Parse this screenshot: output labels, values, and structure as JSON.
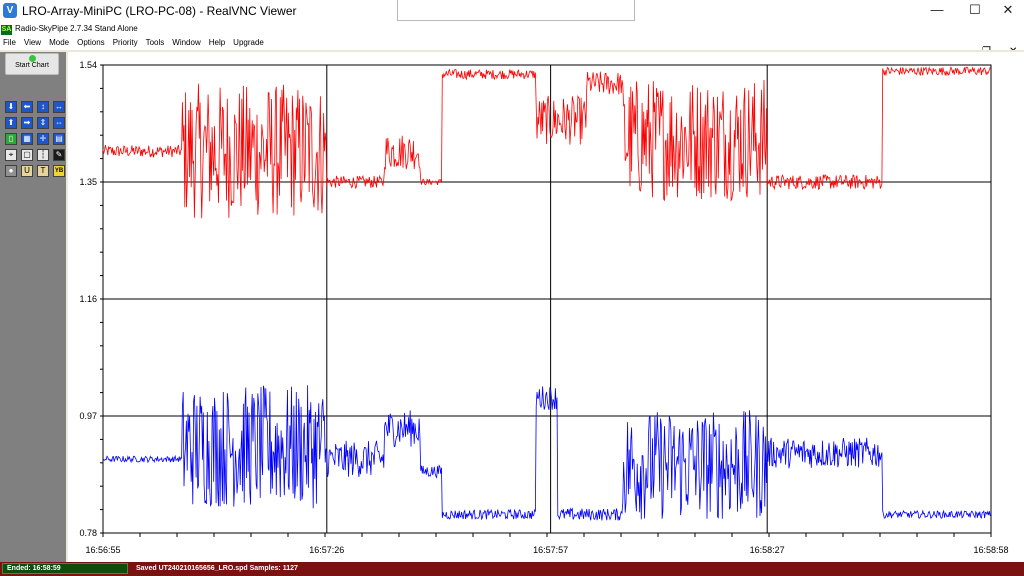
{
  "window": {
    "title": "LRO-Array-MiniPC (LRO-PC-08) - RealVNC Viewer",
    "minimize_glyph": "—",
    "maximize_glyph": "☐",
    "close_glyph": "✕"
  },
  "app": {
    "title": "Radio-SkyPipe  2.7.34  Stand Alone",
    "icon_text": "SA",
    "menu": [
      "File",
      "View",
      "Mode",
      "Options",
      "Priority",
      "Tools",
      "Window",
      "Help",
      "Upgrade"
    ],
    "inner_minimize": "—",
    "inner_restore": "❐",
    "inner_close": "✕"
  },
  "toolbar": {
    "start_chart_label": "Start Chart",
    "tool_icons": [
      "arrow-down-icon",
      "arrow-left-icon",
      "expand-vertical-icon",
      "expand-horizontal-icon",
      "arrow-up-icon",
      "arrow-right-icon",
      "compress-vertical-icon",
      "compress-horizontal-icon",
      "green-marker-icon",
      "table-icon",
      "crosshair-icon",
      "grid-icon",
      "zoom-icon",
      "box-icon",
      "separator-icon",
      "brush-icon",
      "record-icon",
      "user-icon",
      "text-icon",
      "yb-icon"
    ],
    "yb_label": "YB"
  },
  "chart_data": {
    "type": "line",
    "y_ticks": [
      "1.54",
      "1.35",
      "1.16",
      "0.97",
      "0.78"
    ],
    "ylim": [
      0.78,
      1.54
    ],
    "x_ticks": [
      "16:56:55",
      "16:57:26",
      "16:57:57",
      "16:58:27",
      "16:58:58"
    ],
    "xlim": [
      "16:56:55",
      "16:58:58"
    ],
    "grid": true,
    "series": [
      {
        "color": "#ff0000",
        "segments": [
          {
            "from": "16:56:55",
            "to": "16:57:06",
            "level": 1.4,
            "noise": 0.01
          },
          {
            "from": "16:57:06",
            "to": "16:57:26",
            "level": 1.4,
            "noise": 0.11
          },
          {
            "from": "16:57:26",
            "to": "16:57:34",
            "level": 1.35,
            "noise": 0.01
          },
          {
            "from": "16:57:34",
            "to": "16:57:39",
            "level": 1.4,
            "noise": 0.03
          },
          {
            "from": "16:57:39",
            "to": "16:57:42",
            "level": 1.35,
            "noise": 0.005
          },
          {
            "from": "16:57:42",
            "to": "16:57:55",
            "level": 1.525,
            "noise": 0.008
          },
          {
            "from": "16:57:55",
            "to": "16:58:02",
            "level": 1.45,
            "noise": 0.04
          },
          {
            "from": "16:58:02",
            "to": "16:58:07",
            "level": 1.51,
            "noise": 0.02
          },
          {
            "from": "16:58:07",
            "to": "16:58:27",
            "level": 1.42,
            "noise": 0.1
          },
          {
            "from": "16:58:27",
            "to": "16:58:43",
            "level": 1.35,
            "noise": 0.012
          },
          {
            "from": "16:58:43",
            "to": "16:58:58",
            "level": 1.53,
            "noise": 0.007
          }
        ]
      },
      {
        "color": "#0000ff",
        "segments": [
          {
            "from": "16:56:55",
            "to": "16:57:06",
            "level": 0.9,
            "noise": 0.005
          },
          {
            "from": "16:57:06",
            "to": "16:57:26",
            "level": 0.92,
            "noise": 0.1
          },
          {
            "from": "16:57:26",
            "to": "16:57:34",
            "level": 0.9,
            "noise": 0.03
          },
          {
            "from": "16:57:34",
            "to": "16:57:39",
            "level": 0.95,
            "noise": 0.03
          },
          {
            "from": "16:57:39",
            "to": "16:57:42",
            "level": 0.88,
            "noise": 0.01
          },
          {
            "from": "16:57:42",
            "to": "16:57:55",
            "level": 0.81,
            "noise": 0.008
          },
          {
            "from": "16:57:55",
            "to": "16:57:58",
            "level": 1.0,
            "noise": 0.02
          },
          {
            "from": "16:57:58",
            "to": "16:58:07",
            "level": 0.81,
            "noise": 0.01
          },
          {
            "from": "16:58:07",
            "to": "16:58:27",
            "level": 0.89,
            "noise": 0.09
          },
          {
            "from": "16:58:27",
            "to": "16:58:43",
            "level": 0.91,
            "noise": 0.025
          },
          {
            "from": "16:58:43",
            "to": "16:58:58",
            "level": 0.81,
            "noise": 0.006
          }
        ]
      }
    ]
  },
  "status": {
    "ended_label": "Ended:  16:58:59",
    "saved_label": "Saved UT240210165656_LRO.spd   Samples:  1127"
  },
  "colors": {
    "status_bg": "#7a1212",
    "ended_bg": "#0f4d0f",
    "toolpanel_bg": "#808080"
  }
}
